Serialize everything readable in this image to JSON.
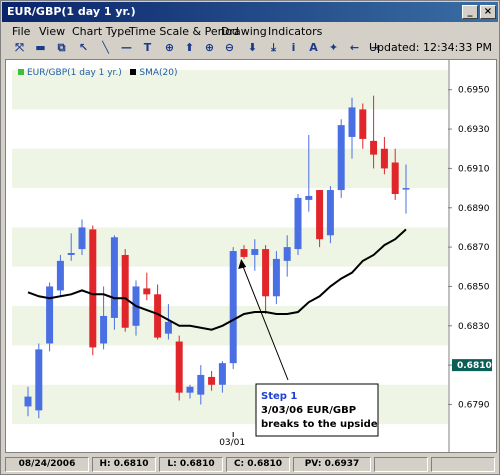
{
  "window": {
    "title": "EUR/GBP(1 day  1 yr.)"
  },
  "menu": [
    "File",
    "View",
    "Chart Type",
    "Time Scale & Period",
    "Drawing",
    "Indicators"
  ],
  "toolbar": {
    "icons": [
      "crosshair-icon",
      "print-icon",
      "copy-icon",
      "pointer-icon",
      "line-icon",
      "horizontal-line-icon",
      "text-icon",
      "target-icon",
      "arrow-up-icon",
      "zoom-in-icon",
      "zoom-out-icon",
      "arrow-down-icon",
      "down-bar-icon",
      "info-icon",
      "a-text-icon",
      "wand-icon",
      "left-arrow-icon",
      "right-arrow-icon"
    ],
    "updated": "Updated: 12:34:33 PM"
  },
  "legend": [
    {
      "label": "EUR/GBP(1 day  1 yr.)",
      "color": "#3ec03e"
    },
    {
      "label": "SMA(20)",
      "color": "#000000"
    }
  ],
  "chart_data": {
    "type": "candlestick",
    "ylim": [
      0.6776,
      0.6958
    ],
    "yticks": [
      "0.6950",
      "0.6930",
      "0.6910",
      "0.6890",
      "0.6870",
      "0.6850",
      "0.6830",
      "0.6810",
      "0.6790"
    ],
    "current_price": "0.6810",
    "xlabel_tick": "03/01",
    "up_color": "#4a6fe3",
    "down_color": "#e0262a",
    "candles": [
      {
        "o": 0.6789,
        "h": 0.6799,
        "l": 0.6784,
        "c": 0.6794
      },
      {
        "o": 0.6787,
        "h": 0.6821,
        "l": 0.6783,
        "c": 0.6818
      },
      {
        "o": 0.6821,
        "h": 0.6852,
        "l": 0.6817,
        "c": 0.685
      },
      {
        "o": 0.6848,
        "h": 0.6866,
        "l": 0.6845,
        "c": 0.6863
      },
      {
        "o": 0.6866,
        "h": 0.6877,
        "l": 0.6863,
        "c": 0.6867
      },
      {
        "o": 0.6869,
        "h": 0.6884,
        "l": 0.6866,
        "c": 0.688
      },
      {
        "o": 0.6879,
        "h": 0.6881,
        "l": 0.6815,
        "c": 0.6819
      },
      {
        "o": 0.6821,
        "h": 0.685,
        "l": 0.6818,
        "c": 0.6835
      },
      {
        "o": 0.6834,
        "h": 0.6876,
        "l": 0.6828,
        "c": 0.6875
      },
      {
        "o": 0.6866,
        "h": 0.6869,
        "l": 0.6827,
        "c": 0.6829
      },
      {
        "o": 0.683,
        "h": 0.6853,
        "l": 0.6825,
        "c": 0.685
      },
      {
        "o": 0.6849,
        "h": 0.6857,
        "l": 0.6843,
        "c": 0.6846
      },
      {
        "o": 0.6846,
        "h": 0.6851,
        "l": 0.6823,
        "c": 0.6824
      },
      {
        "o": 0.6826,
        "h": 0.6841,
        "l": 0.6823,
        "c": 0.6832
      },
      {
        "o": 0.6822,
        "h": 0.6825,
        "l": 0.6792,
        "c": 0.6796
      },
      {
        "o": 0.6796,
        "h": 0.68,
        "l": 0.6793,
        "c": 0.6799
      },
      {
        "o": 0.6795,
        "h": 0.681,
        "l": 0.679,
        "c": 0.6805
      },
      {
        "o": 0.6804,
        "h": 0.6807,
        "l": 0.6797,
        "c": 0.68
      },
      {
        "o": 0.68,
        "h": 0.6812,
        "l": 0.6796,
        "c": 0.6811
      },
      {
        "o": 0.6811,
        "h": 0.687,
        "l": 0.6808,
        "c": 0.6868
      },
      {
        "o": 0.6869,
        "h": 0.6871,
        "l": 0.6864,
        "c": 0.6865
      },
      {
        "o": 0.6866,
        "h": 0.6874,
        "l": 0.6858,
        "c": 0.6869
      },
      {
        "o": 0.6869,
        "h": 0.6871,
        "l": 0.6836,
        "c": 0.6845
      },
      {
        "o": 0.6845,
        "h": 0.6868,
        "l": 0.6841,
        "c": 0.6864
      },
      {
        "o": 0.6863,
        "h": 0.6876,
        "l": 0.6855,
        "c": 0.687
      },
      {
        "o": 0.6869,
        "h": 0.6897,
        "l": 0.6866,
        "c": 0.6895
      },
      {
        "o": 0.6894,
        "h": 0.6927,
        "l": 0.6888,
        "c": 0.6896
      },
      {
        "o": 0.6899,
        "h": 0.6899,
        "l": 0.687,
        "c": 0.6874
      },
      {
        "o": 0.6876,
        "h": 0.6901,
        "l": 0.6872,
        "c": 0.6899
      },
      {
        "o": 0.6899,
        "h": 0.6935,
        "l": 0.6895,
        "c": 0.6932
      },
      {
        "o": 0.6926,
        "h": 0.6946,
        "l": 0.6915,
        "c": 0.6941
      },
      {
        "o": 0.694,
        "h": 0.6943,
        "l": 0.692,
        "c": 0.6925
      },
      {
        "o": 0.6924,
        "h": 0.6947,
        "l": 0.691,
        "c": 0.6917
      },
      {
        "o": 0.692,
        "h": 0.6926,
        "l": 0.6907,
        "c": 0.691
      },
      {
        "o": 0.6913,
        "h": 0.692,
        "l": 0.6894,
        "c": 0.6897
      },
      {
        "o": 0.69,
        "h": 0.6912,
        "l": 0.6887,
        "c": 0.69
      }
    ],
    "sma": [
      0.6847,
      0.6845,
      0.6844,
      0.6845,
      0.6846,
      0.6848,
      0.6846,
      0.6846,
      0.6844,
      0.6844,
      0.684,
      0.6838,
      0.6836,
      0.6833,
      0.683,
      0.683,
      0.6829,
      0.6828,
      0.683,
      0.6833,
      0.6836,
      0.6837,
      0.6837,
      0.6836,
      0.6836,
      0.6837,
      0.6842,
      0.6845,
      0.685,
      0.6854,
      0.6857,
      0.6863,
      0.6866,
      0.6871,
      0.6874,
      0.6879
    ]
  },
  "annotation": {
    "step": "Step 1",
    "line1": "3/03/06 EUR/GBP",
    "line2": "breaks to the upside"
  },
  "status": {
    "date": "08/24/2006",
    "high": "H: 0.6810",
    "low": "L: 0.6810",
    "close": "C: 0.6810",
    "pv": "PV: 0.6937"
  }
}
